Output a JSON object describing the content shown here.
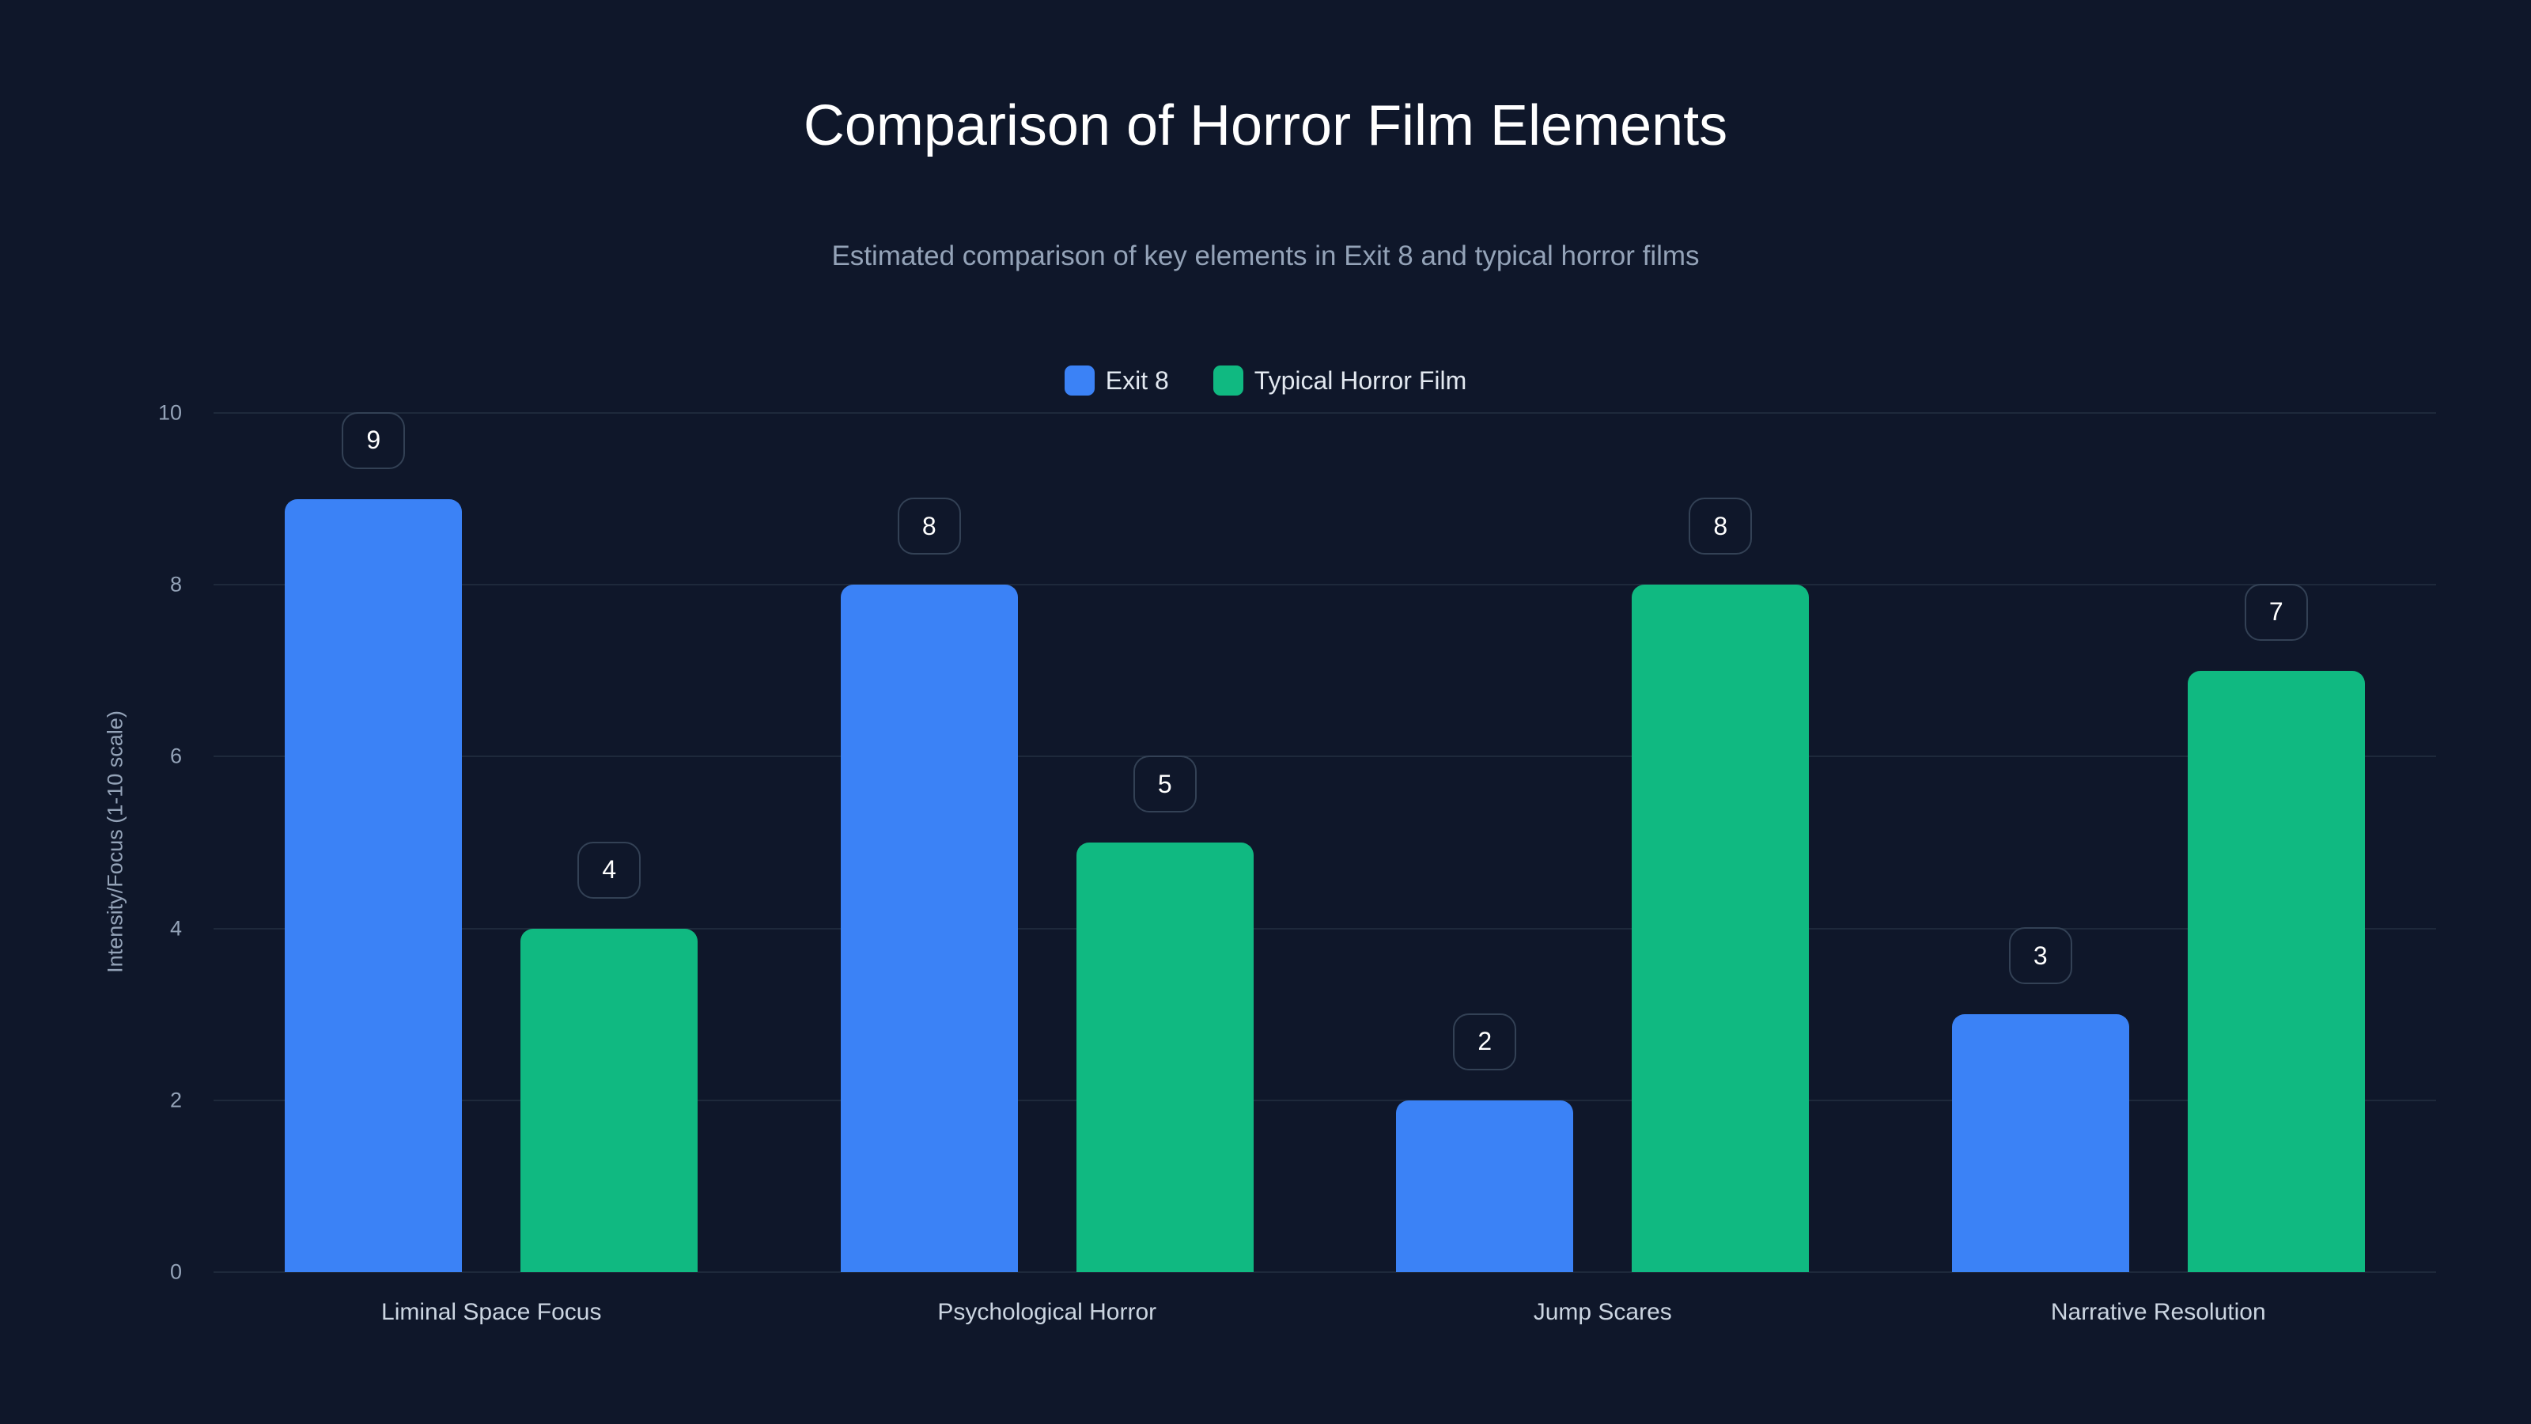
{
  "title": "Comparison of Horror Film Elements",
  "subtitle": "Estimated comparison of key elements in Exit 8 and typical horror films",
  "legend": [
    {
      "label": "Exit 8",
      "color": "#3b82f6"
    },
    {
      "label": "Typical Horror Film",
      "color": "#10b981"
    }
  ],
  "colors": {
    "background": "#0f172a",
    "grid": "#1e293b",
    "exit8": "#3b82f6",
    "typical": "#10b981"
  },
  "chart_data": {
    "type": "bar",
    "title": "Comparison of Horror Film Elements",
    "subtitle": "Estimated comparison of key elements in Exit 8 and typical horror films",
    "xlabel": "",
    "ylabel": "Intensity/Focus (1-10 scale)",
    "ylim": [
      0,
      10
    ],
    "yticks": [
      0,
      2,
      4,
      6,
      8,
      10
    ],
    "grid": true,
    "legend_position": "top-center",
    "categories": [
      "Liminal Space Focus",
      "Psychological Horror",
      "Jump Scares",
      "Narrative Resolution"
    ],
    "series": [
      {
        "name": "Exit 8",
        "color": "#3b82f6",
        "values": [
          9,
          8,
          2,
          3
        ]
      },
      {
        "name": "Typical Horror Film",
        "color": "#10b981",
        "values": [
          4,
          5,
          8,
          7
        ]
      }
    ]
  }
}
